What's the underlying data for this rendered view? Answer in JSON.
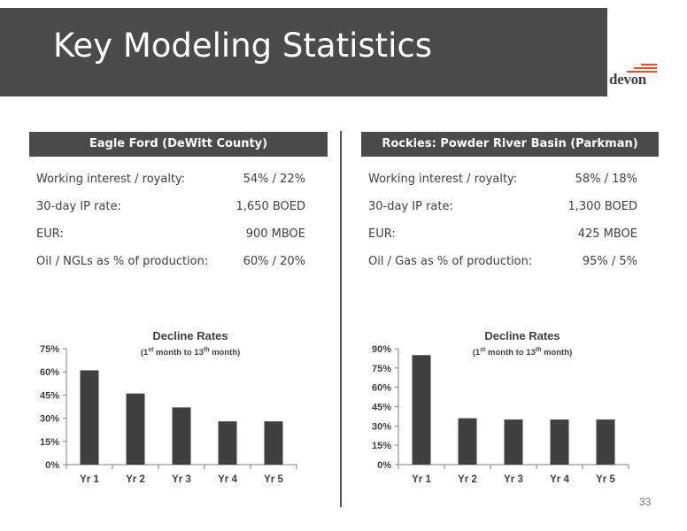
{
  "slide": {
    "title": "Key Modeling Statistics",
    "logo_text": "devon",
    "page_number": "33",
    "colors": {
      "title_bar": "#4b4b4b",
      "bar": "#404040",
      "logo_accent": "#e8502c"
    }
  },
  "left_panel": {
    "header": "Eagle Ford (DeWitt County)",
    "stats": [
      {
        "label": "Working interest / royalty:",
        "value": "54% / 22%"
      },
      {
        "label": "30-day IP rate:",
        "value": "1,650 BOED"
      },
      {
        "label": "EUR:",
        "value": "900 MBOE"
      },
      {
        "label": "Oil / NGLs as % of production:",
        "value": "60% / 20%"
      }
    ]
  },
  "right_panel": {
    "header": "Rockies: Powder River Basin (Parkman)",
    "stats": [
      {
        "label": "Working interest / royalty:",
        "value": "58% / 18%"
      },
      {
        "label": "30-day IP rate:",
        "value": "1,300 BOED"
      },
      {
        "label": "EUR:",
        "value": "425 MBOE"
      },
      {
        "label": "Oil / Gas as % of production:",
        "value": "95% / 5%"
      }
    ]
  },
  "chart_data": [
    {
      "type": "bar",
      "title": "Decline Rates",
      "subtitle_parts": [
        "(1",
        "st",
        " month to 13",
        "th",
        " month)"
      ],
      "categories": [
        "Yr 1",
        "Yr 2",
        "Yr 3",
        "Yr 4",
        "Yr 5"
      ],
      "values": [
        61,
        46,
        37,
        28,
        28
      ],
      "ylim": [
        0,
        75
      ],
      "yticks": [
        "0%",
        "15%",
        "30%",
        "45%",
        "60%",
        "75%"
      ],
      "ytick_values": [
        0,
        15,
        30,
        45,
        60,
        75
      ],
      "xlabel": "",
      "ylabel": ""
    },
    {
      "type": "bar",
      "title": "Decline Rates",
      "subtitle_parts": [
        "(1",
        "st",
        " month to 13",
        "th",
        " month)"
      ],
      "categories": [
        "Yr 1",
        "Yr 2",
        "Yr 3",
        "Yr 4",
        "Yr 5"
      ],
      "values": [
        85,
        36,
        35,
        35,
        35
      ],
      "ylim": [
        0,
        90
      ],
      "yticks": [
        "0%",
        "15%",
        "30%",
        "45%",
        "60%",
        "75%",
        "90%"
      ],
      "ytick_values": [
        0,
        15,
        30,
        45,
        60,
        75,
        90
      ],
      "xlabel": "",
      "ylabel": ""
    }
  ]
}
